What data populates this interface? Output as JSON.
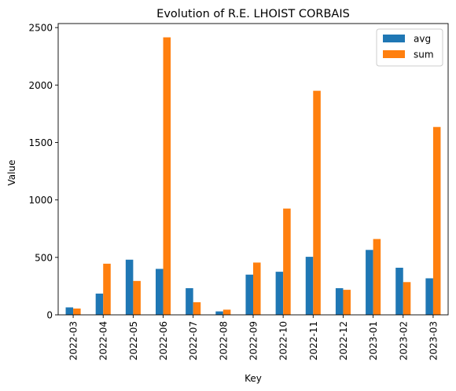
{
  "chart_data": {
    "type": "bar",
    "title": "Evolution of R.E. LHOIST CORBAIS",
    "xlabel": "Key",
    "ylabel": "Value",
    "categories": [
      "2022-03",
      "2022-04",
      "2022-05",
      "2022-06",
      "2022-07",
      "2022-08",
      "2022-09",
      "2022-10",
      "2022-11",
      "2022-12",
      "2023-01",
      "2023-02",
      "2023-03"
    ],
    "series": [
      {
        "name": "avg",
        "color": "#1f77b4",
        "values": [
          65,
          185,
          480,
          400,
          232,
          30,
          350,
          375,
          505,
          232,
          565,
          410,
          318
        ]
      },
      {
        "name": "sum",
        "color": "#ff7f0e",
        "values": [
          55,
          445,
          295,
          2415,
          110,
          45,
          455,
          925,
          1950,
          218,
          660,
          285,
          1635
        ]
      }
    ],
    "ylim": [
      0,
      2535
    ],
    "yticks": [
      0,
      500,
      1000,
      1500,
      2000,
      2500
    ],
    "legend_position": "top-right",
    "grid": false
  }
}
